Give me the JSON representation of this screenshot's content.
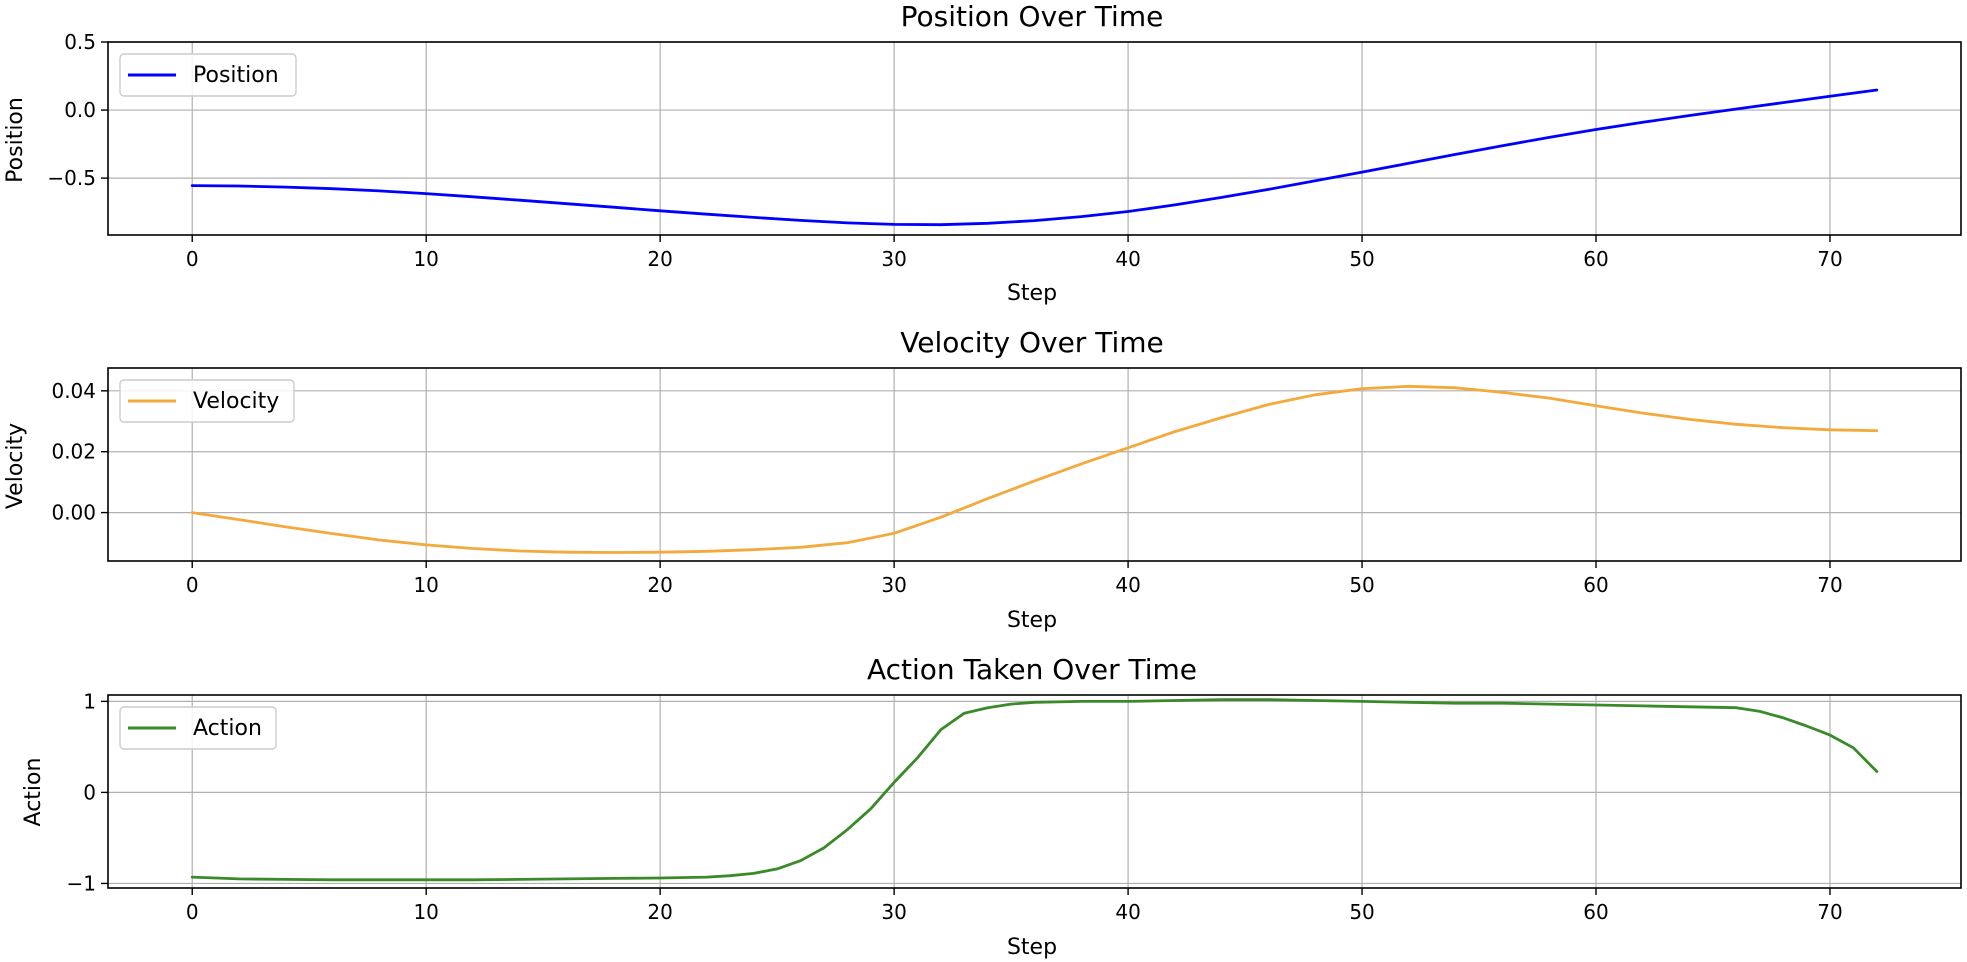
{
  "chart_data": [
    {
      "type": "line",
      "title": "Position Over Time",
      "xlabel": "Step",
      "ylabel": "Position",
      "xlim": [
        -3.6,
        75.6
      ],
      "ylim": [
        -0.918,
        0.5
      ],
      "xticks": [
        0,
        10,
        20,
        30,
        40,
        50,
        60,
        70
      ],
      "xtick_labels": [
        "0",
        "10",
        "20",
        "30",
        "40",
        "50",
        "60",
        "70"
      ],
      "yticks": [
        0.5,
        0.0,
        -0.5
      ],
      "ytick_labels": [
        "0.5",
        "0.0",
        "−0.5"
      ],
      "grid": true,
      "legend_position": "upper-left",
      "series": [
        {
          "name": "Position",
          "color": "#0000ff",
          "x": [
            0,
            2,
            4,
            6,
            8,
            10,
            12,
            14,
            16,
            18,
            20,
            22,
            24,
            26,
            28,
            30,
            32,
            34,
            36,
            38,
            40,
            42,
            44,
            46,
            48,
            50,
            52,
            54,
            56,
            58,
            60,
            62,
            64,
            66,
            68,
            70,
            72
          ],
          "y": [
            -0.555,
            -0.558,
            -0.566,
            -0.578,
            -0.594,
            -0.614,
            -0.637,
            -0.662,
            -0.688,
            -0.714,
            -0.74,
            -0.765,
            -0.789,
            -0.811,
            -0.829,
            -0.84,
            -0.842,
            -0.832,
            -0.812,
            -0.783,
            -0.745,
            -0.697,
            -0.642,
            -0.583,
            -0.52,
            -0.456,
            -0.391,
            -0.326,
            -0.262,
            -0.201,
            -0.143,
            -0.09,
            -0.04,
            0.008,
            0.055,
            0.101,
            0.147
          ]
        }
      ]
    },
    {
      "type": "line",
      "title": "Velocity Over Time",
      "xlabel": "Step",
      "ylabel": "Velocity",
      "xlim": [
        -3.6,
        75.6
      ],
      "ylim": [
        -0.0159,
        0.0475
      ],
      "xticks": [
        0,
        10,
        20,
        30,
        40,
        50,
        60,
        70
      ],
      "xtick_labels": [
        "0",
        "10",
        "20",
        "30",
        "40",
        "50",
        "60",
        "70"
      ],
      "yticks": [
        0.04,
        0.02,
        0.0
      ],
      "ytick_labels": [
        "0.04",
        "0.02",
        "0.00"
      ],
      "grid": true,
      "legend_position": "upper-left",
      "series": [
        {
          "name": "Velocity",
          "color": "#f4a93c",
          "x": [
            0,
            2,
            4,
            6,
            8,
            10,
            12,
            14,
            16,
            18,
            20,
            22,
            24,
            26,
            28,
            30,
            32,
            34,
            36,
            38,
            40,
            42,
            44,
            46,
            48,
            50,
            52,
            54,
            56,
            58,
            60,
            62,
            64,
            66,
            68,
            70,
            72
          ],
          "y": [
            0.0,
            -0.0023,
            -0.0047,
            -0.0069,
            -0.009,
            -0.0106,
            -0.0118,
            -0.0126,
            -0.013,
            -0.0131,
            -0.013,
            -0.0127,
            -0.0122,
            -0.0114,
            -0.0099,
            -0.0068,
            -0.0015,
            0.0046,
            0.0104,
            0.016,
            0.0213,
            0.0266,
            0.0312,
            0.0355,
            0.0387,
            0.0407,
            0.0415,
            0.041,
            0.0395,
            0.0376,
            0.0351,
            0.0327,
            0.0306,
            0.029,
            0.0279,
            0.0272,
            0.0269
          ]
        }
      ]
    },
    {
      "type": "line",
      "title": "Action Taken Over Time",
      "xlabel": "Step",
      "ylabel": "Action",
      "xlim": [
        -3.6,
        75.6
      ],
      "ylim": [
        -1.05,
        1.07
      ],
      "xticks": [
        0,
        10,
        20,
        30,
        40,
        50,
        60,
        70
      ],
      "xtick_labels": [
        "0",
        "10",
        "20",
        "30",
        "40",
        "50",
        "60",
        "70"
      ],
      "yticks": [
        1,
        0,
        -1
      ],
      "ytick_labels": [
        "1",
        "0",
        "−1"
      ],
      "grid": true,
      "legend_position": "upper-left",
      "series": [
        {
          "name": "Action",
          "color": "#3a8a2a",
          "x": [
            0,
            2,
            4,
            6,
            8,
            10,
            12,
            14,
            16,
            18,
            20,
            22,
            23,
            24,
            25,
            26,
            27,
            28,
            29,
            30,
            31,
            32,
            33,
            34,
            35,
            36,
            38,
            40,
            42,
            44,
            46,
            48,
            50,
            52,
            54,
            56,
            58,
            60,
            62,
            64,
            66,
            67,
            68,
            69,
            70,
            71,
            72
          ],
          "y": [
            -0.93,
            -0.95,
            -0.955,
            -0.96,
            -0.96,
            -0.96,
            -0.96,
            -0.955,
            -0.95,
            -0.945,
            -0.94,
            -0.93,
            -0.915,
            -0.89,
            -0.84,
            -0.75,
            -0.61,
            -0.41,
            -0.18,
            0.11,
            0.38,
            0.69,
            0.87,
            0.93,
            0.97,
            0.99,
            1.0,
            1.0,
            1.01,
            1.02,
            1.02,
            1.01,
            1.0,
            0.99,
            0.98,
            0.98,
            0.97,
            0.96,
            0.95,
            0.94,
            0.93,
            0.89,
            0.82,
            0.73,
            0.63,
            0.49,
            0.23
          ]
        }
      ]
    }
  ]
}
